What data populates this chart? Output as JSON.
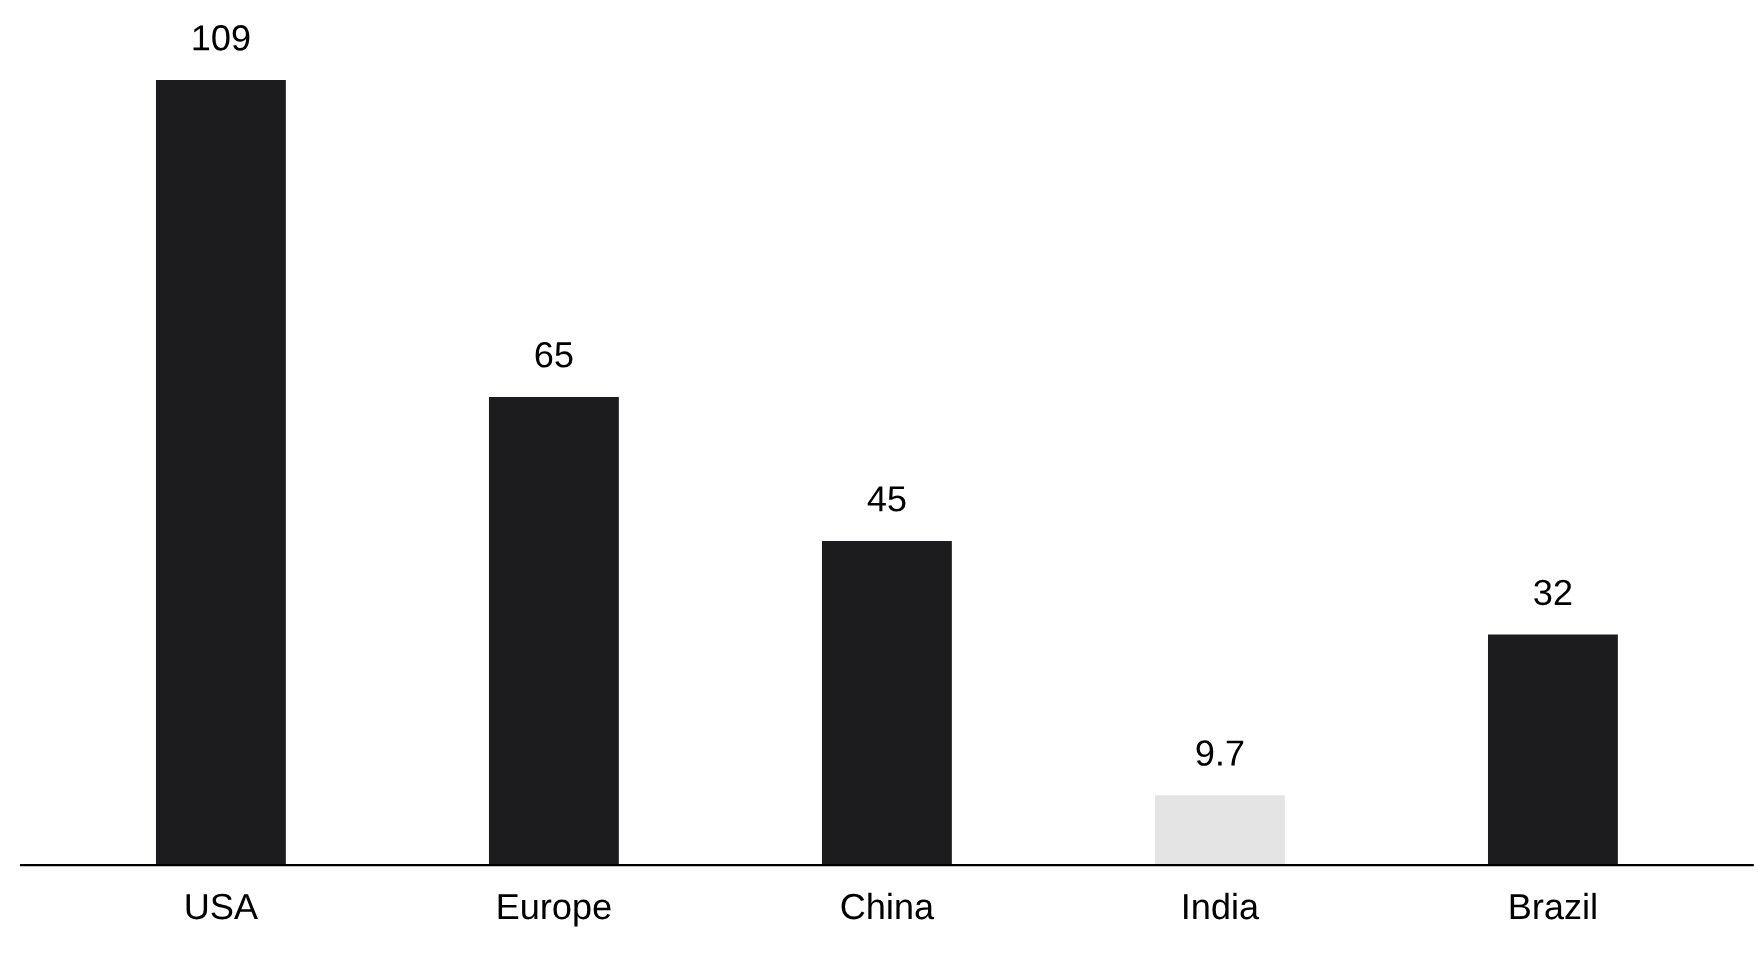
{
  "chart_data": {
    "type": "bar",
    "categories": [
      "USA",
      "Europe",
      "China",
      "India",
      "Brazil"
    ],
    "values": [
      109,
      65,
      45,
      9.7,
      32
    ],
    "colors": [
      "#1c1c1f",
      "#1c1c1f",
      "#1c1c1f",
      "#e4e4e4",
      "#1c1c1f"
    ],
    "data_labels": true,
    "grid": false,
    "legend": false
  }
}
